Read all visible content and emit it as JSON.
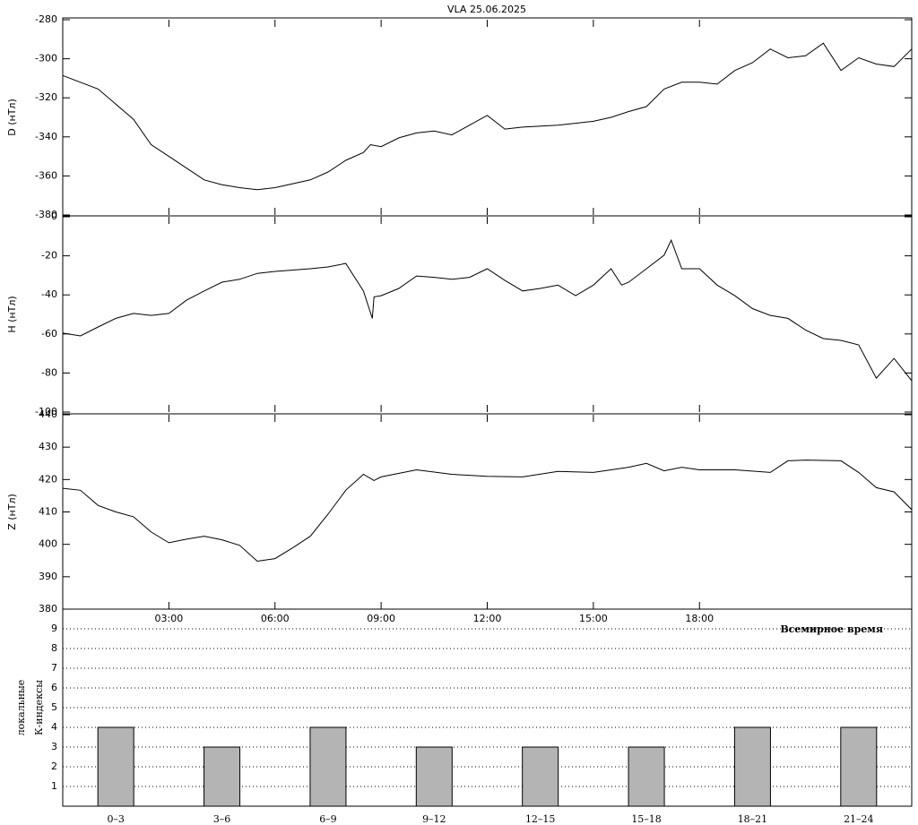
{
  "chart_data": [
    {
      "type": "line",
      "title": "VLA   25.06.2025",
      "ylabel": "D (нТл)",
      "color": "#000000",
      "xlim": [
        0,
        24
      ],
      "ylim": [
        -380,
        -280
      ],
      "yticks": [
        -280,
        -300,
        -320,
        -340,
        -360,
        -380
      ],
      "x": [
        0,
        1,
        2,
        2.5,
        3,
        3.5,
        4,
        4.5,
        5,
        5.5,
        6,
        6.5,
        7,
        7.5,
        8,
        8.5,
        8.7,
        9,
        9.5,
        10,
        10.5,
        11,
        11.5,
        12,
        12.5,
        13,
        14,
        15,
        15.5,
        16,
        16.5,
        17,
        17.5,
        18,
        18.5,
        19,
        19.5,
        20,
        20.5,
        21,
        21.5,
        22,
        22.5,
        23,
        23.5,
        24
      ],
      "values": [
        -308.6,
        -315.5,
        -331,
        -344,
        -350,
        -356,
        -362,
        -364.5,
        -366,
        -367,
        -366,
        -364,
        -362,
        -358,
        -352,
        -348,
        -344,
        -345,
        -340.5,
        -338,
        -337,
        -339,
        -334,
        -329,
        -336,
        -335,
        -334,
        -332,
        -330,
        -327,
        -324.5,
        -315.5,
        -312,
        -312,
        -313,
        -306,
        -302,
        -295,
        -299.5,
        -298.5,
        -292,
        -306,
        -299.5,
        -302.7,
        -304,
        -295
      ]
    },
    {
      "type": "line",
      "ylabel": "H (нТл)",
      "color": "#000000",
      "xlim": [
        0,
        24
      ],
      "ylim": [
        -100,
        0
      ],
      "yticks": [
        0,
        -20,
        -40,
        -60,
        -80,
        -100
      ],
      "x": [
        0,
        0.5,
        1,
        1.5,
        2,
        2.5,
        3,
        3.5,
        4,
        4.5,
        5,
        5.5,
        6,
        7,
        7.5,
        8,
        8.5,
        8.75,
        8.8,
        9,
        9.5,
        10,
        10.5,
        11,
        11.5,
        12,
        12.5,
        13,
        13.5,
        14,
        14.5,
        15,
        15.5,
        15.8,
        16,
        16.5,
        17,
        17.2,
        17.5,
        18,
        18.5,
        19,
        19.5,
        20,
        20.5,
        21,
        21.5,
        22,
        22.5,
        23,
        23.5,
        24
      ],
      "values": [
        -59.6,
        -61,
        -56.4,
        -52,
        -49.5,
        -50.5,
        -49.5,
        -42.7,
        -38,
        -33.5,
        -32,
        -29,
        -28,
        -26.6,
        -25.7,
        -23.9,
        -38,
        -52,
        -41,
        -40.4,
        -36.7,
        -30.3,
        -31,
        -32,
        -31,
        -26.6,
        -32.6,
        -38,
        -36.7,
        -35,
        -40.4,
        -35,
        -26.6,
        -35,
        -33.5,
        -26.6,
        -19.7,
        -12,
        -26.6,
        -26.6,
        -35,
        -40.4,
        -47,
        -50.5,
        -52,
        -58,
        -62.4,
        -63.3,
        -65.6,
        -82.6,
        -72.5,
        -84
      ]
    },
    {
      "type": "line",
      "ylabel": "Z (нТл)",
      "xlabel": "Всемирное время",
      "color": "#000000",
      "xlim": [
        0,
        24
      ],
      "ylim": [
        380,
        440
      ],
      "yticks": [
        440,
        430,
        420,
        410,
        400,
        390,
        380
      ],
      "xticks": [
        {
          "value": 3,
          "label": "03:00"
        },
        {
          "value": 6,
          "label": "06:00"
        },
        {
          "value": 9,
          "label": "09:00"
        },
        {
          "value": 12,
          "label": "12:00"
        },
        {
          "value": 15,
          "label": "15:00"
        },
        {
          "value": 18,
          "label": "18:00"
        }
      ],
      "x": [
        0,
        0.5,
        1,
        1.5,
        2,
        2.5,
        3,
        3.5,
        4,
        4.5,
        5,
        5.5,
        6,
        6.5,
        7,
        7.5,
        8,
        8.5,
        8.8,
        9,
        10,
        11,
        12,
        13,
        14,
        15,
        16,
        16.5,
        17,
        17.5,
        18,
        19,
        20,
        20.5,
        21,
        22,
        22.5,
        23,
        23.5,
        24
      ],
      "values": [
        417.3,
        416.7,
        412,
        410,
        408.5,
        403.8,
        400.5,
        401.6,
        402.5,
        401.4,
        399.7,
        394.8,
        395.6,
        398.9,
        402.5,
        409.3,
        416.7,
        421.6,
        419.7,
        420.8,
        423,
        421.6,
        421,
        420.8,
        422.5,
        422.2,
        423.8,
        425,
        422.7,
        423.8,
        423,
        423,
        422.2,
        425.8,
        426,
        425.8,
        422.2,
        417.5,
        416.2,
        410.7
      ]
    },
    {
      "type": "bar",
      "ylabel": [
        "локальные",
        "К-индексы"
      ],
      "color": "#b4b4b4",
      "grid": true,
      "ylim": [
        0,
        10
      ],
      "yticks": [
        1,
        2,
        3,
        4,
        5,
        6,
        7,
        8,
        9
      ],
      "categories": [
        "0–3",
        "3–6",
        "6–9",
        "9–12",
        "12–15",
        "15–18",
        "18–21",
        "21–24"
      ],
      "values": [
        4,
        3,
        4,
        3,
        3,
        3,
        4,
        4
      ]
    }
  ]
}
